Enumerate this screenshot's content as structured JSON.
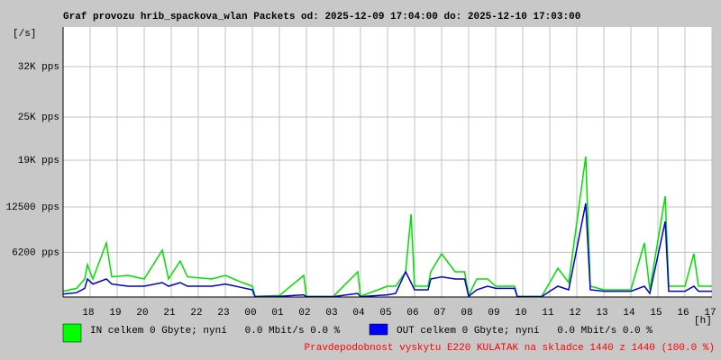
{
  "chart_data": {
    "type": "line",
    "title": "Graf provozu hrib_spackova_wlan Packets od: 2025-12-09 17:04:00 do: 2025-12-10 17:03:00",
    "y_label": "[/s]",
    "x_label": "[h]",
    "x": [
      0,
      0.5,
      0.8,
      0.9,
      1.1,
      1.6,
      1.8,
      2.4,
      3.0,
      3.67,
      3.9,
      4.33,
      4.6,
      5.5,
      6.0,
      6.5,
      7.0,
      7.1,
      8.0,
      8.9,
      9.0,
      10.0,
      10.9,
      11.0,
      12.0,
      12.3,
      12.67,
      12.87,
      13.0,
      13.5,
      13.6,
      14.0,
      14.5,
      14.85,
      15.0,
      15.3,
      15.7,
      16.0,
      16.7,
      16.8,
      17.7,
      18.0,
      18.3,
      18.7,
      19.33,
      19.5,
      20.0,
      21.0,
      21.5,
      21.7,
      22.27,
      22.4,
      23.0,
      23.33,
      23.5,
      24.0
    ],
    "series": [
      {
        "name": "IN celkem 0 Gbyte; nyní   0.0 Mbit/s 0.0 %",
        "color": "#00e000",
        "values": [
          800,
          1200,
          2500,
          4500,
          2500,
          7500,
          2800,
          3000,
          2500,
          6500,
          2500,
          5000,
          2800,
          2500,
          3000,
          2200,
          1500,
          100,
          200,
          3000,
          100,
          100,
          3500,
          100,
          1500,
          1500,
          3500,
          11500,
          1500,
          1500,
          3500,
          6000,
          3500,
          3500,
          200,
          2500,
          2500,
          1500,
          1500,
          100,
          100,
          2000,
          4000,
          2000,
          19500,
          1500,
          1000,
          1000,
          7500,
          1000,
          14000,
          1500,
          1500,
          6000,
          1500,
          1500
        ]
      },
      {
        "name": "OUT celkem 0 Gbyte; nyní   0.0 Mbit/s 0.0 %",
        "color": "#0000d0",
        "values": [
          400,
          600,
          1200,
          2500,
          1800,
          2500,
          1800,
          1500,
          1500,
          2000,
          1500,
          2000,
          1500,
          1500,
          1800,
          1400,
          1000,
          50,
          100,
          300,
          50,
          50,
          500,
          50,
          300,
          500,
          3500,
          2000,
          1000,
          1000,
          2500,
          2800,
          2500,
          2500,
          100,
          1000,
          1500,
          1200,
          1200,
          50,
          50,
          800,
          1500,
          1000,
          13000,
          1000,
          800,
          800,
          1500,
          500,
          10500,
          800,
          800,
          1500,
          800,
          800
        ]
      }
    ],
    "legend_colors": [
      "#00ff00",
      "#0000ff"
    ],
    "footer": "Pravdepodobnost vyskytu E220 KULATAK na skladce 1440 z 1440 (100.0 %)",
    "footer_color": "#ff0000",
    "xlim": [
      0,
      24
    ],
    "xticks": [
      {
        "value": 1,
        "label": "18"
      },
      {
        "value": 2,
        "label": "19"
      },
      {
        "value": 3,
        "label": "20"
      },
      {
        "value": 4,
        "label": "21"
      },
      {
        "value": 5,
        "label": "22"
      },
      {
        "value": 6,
        "label": "23"
      },
      {
        "value": 7,
        "label": "00"
      },
      {
        "value": 8,
        "label": "01"
      },
      {
        "value": 9,
        "label": "02"
      },
      {
        "value": 10,
        "label": "03"
      },
      {
        "value": 11,
        "label": "04"
      },
      {
        "value": 12,
        "label": "05"
      },
      {
        "value": 13,
        "label": "06"
      },
      {
        "value": 14,
        "label": "07"
      },
      {
        "value": 15,
        "label": "08"
      },
      {
        "value": 16,
        "label": "09"
      },
      {
        "value": 17,
        "label": "10"
      },
      {
        "value": 18,
        "label": "11"
      },
      {
        "value": 19,
        "label": "12"
      },
      {
        "value": 20,
        "label": "13"
      },
      {
        "value": 21,
        "label": "14"
      },
      {
        "value": 22,
        "label": "15"
      },
      {
        "value": 23,
        "label": "16"
      },
      {
        "value": 24,
        "label": "17"
      }
    ],
    "ylim": [
      0,
      37500
    ],
    "yticks": [
      {
        "value": 6200,
        "label": "6200 pps"
      },
      {
        "value": 12500,
        "label": "12500 pps"
      },
      {
        "value": 19000,
        "label": "19K pps"
      },
      {
        "value": 25000,
        "label": "25K pps"
      },
      {
        "value": 32000,
        "label": "32K pps"
      }
    ],
    "grid": true
  }
}
